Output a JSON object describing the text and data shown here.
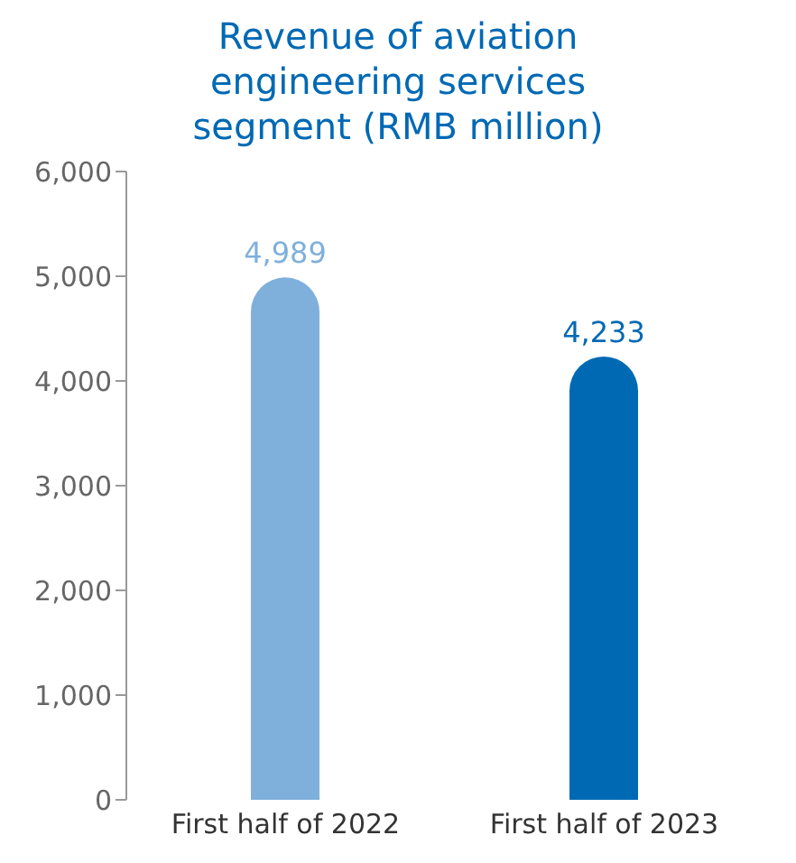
{
  "chart_data": {
    "type": "bar",
    "title": "Revenue of aviation engineering services segment (RMB million)",
    "categories": [
      "First half of 2022",
      "First half of 2023"
    ],
    "values": [
      4989,
      4233
    ],
    "colors": [
      "#7fb0dc",
      "#0069b4"
    ],
    "value_labels": [
      "4,989",
      "4,233"
    ],
    "ylim": [
      0,
      6000
    ],
    "yticks": [
      {
        "value": 0,
        "label": "0"
      },
      {
        "value": 1000,
        "label": "1,000"
      },
      {
        "value": 2000,
        "label": "2,000"
      },
      {
        "value": 3000,
        "label": "3,000"
      },
      {
        "value": 4000,
        "label": "4,000"
      },
      {
        "value": 5000,
        "label": "5,000"
      },
      {
        "value": 6000,
        "label": "6,000"
      }
    ],
    "grid": false,
    "legend": false
  }
}
